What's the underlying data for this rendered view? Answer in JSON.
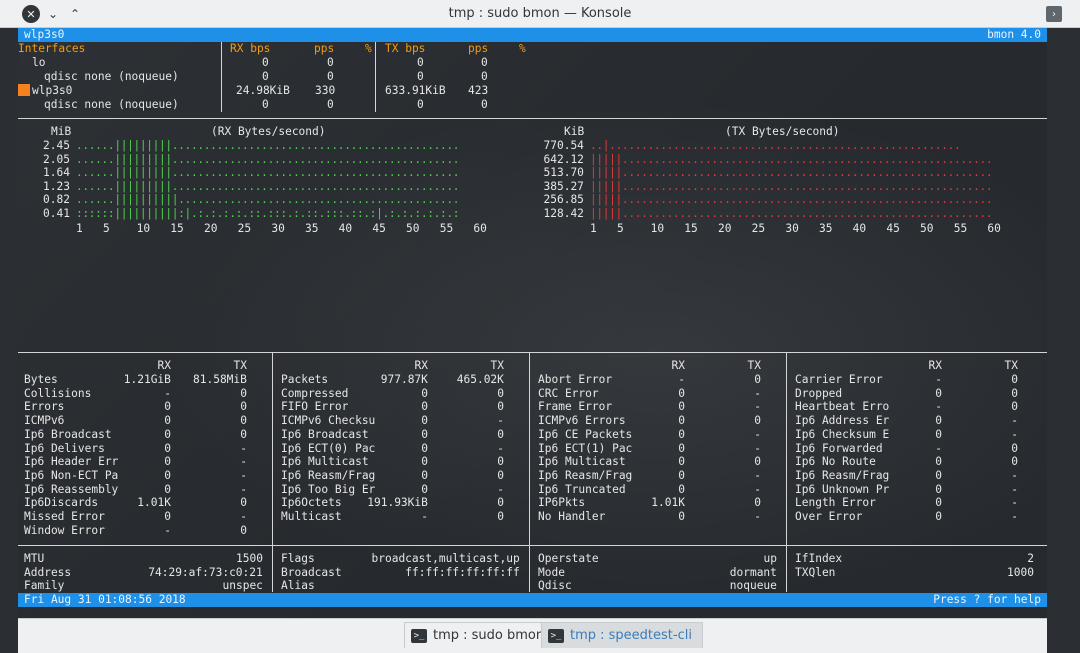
{
  "window": {
    "title": "tmp : sudo bmon — Konsole",
    "close_glyph": "✕",
    "min_glyph": "⌄",
    "max_glyph": "⌃",
    "menu_glyph": "›"
  },
  "bmon": {
    "top_bar": {
      "left": "wlp3s0",
      "right": "bmon 4.0"
    },
    "iface_header": {
      "interfaces": "Interfaces",
      "rx_bps": "RX bps",
      "rx_pps": "pps",
      "rx_pct": "%",
      "tx_bps": "TX bps",
      "tx_pps": "pps",
      "tx_pct": "%"
    },
    "interfaces": [
      {
        "name": "lo",
        "rx_bps": "0",
        "rx_pps": "0",
        "tx_bps": "0",
        "tx_pps": "0",
        "selected": false,
        "indent": 1
      },
      {
        "name": "qdisc none (noqueue)",
        "rx_bps": "0",
        "rx_pps": "0",
        "tx_bps": "0",
        "tx_pps": "0",
        "selected": false,
        "indent": 2
      },
      {
        "name": "wlp3s0",
        "rx_bps": "24.98KiB",
        "rx_pps": "330",
        "tx_bps": "633.91KiB",
        "tx_pps": "423",
        "selected": true,
        "indent": 1
      },
      {
        "name": "qdisc none (noqueue)",
        "rx_bps": "0",
        "rx_pps": "0",
        "tx_bps": "0",
        "tx_pps": "0",
        "selected": false,
        "indent": 2
      }
    ],
    "rx_graph": {
      "unit": "MiB",
      "title": "(RX Bytes/second)",
      "rows": [
        {
          "label": "2.45",
          "plot": "......|||||||||............................................."
        },
        {
          "label": "2.05",
          "plot": "......|||||||||............................................."
        },
        {
          "label": "1.64",
          "plot": "......|||||||||............................................."
        },
        {
          "label": "1.23",
          "plot": "......|||||||||............................................."
        },
        {
          "label": "0.82",
          "plot": "......||||||||||............................................"
        },
        {
          "label": "0.41",
          "plot": "::::::||||||||||:|.:.:.:.:.::.:::.:.::.:::.::.:|.:.:.:.:.:.:"
        }
      ],
      "x_axis": "1   5    10   15   20   25   30   35   40   45   50   55   60"
    },
    "tx_graph": {
      "unit": "KiB",
      "title": "(TX Bytes/second)",
      "rows": [
        {
          "label": "770.54",
          "plot": "..|......................................................."
        },
        {
          "label": "642.12",
          "plot": "|||||.........................................................."
        },
        {
          "label": "513.70",
          "plot": "|||||.........................................................."
        },
        {
          "label": "385.27",
          "plot": "|||||.........................................................."
        },
        {
          "label": "256.85",
          "plot": "|||||.........................................................."
        },
        {
          "label": "128.42",
          "plot": "|||||.........................................................."
        }
      ],
      "x_axis": "1   5    10   15   20   25   30   35   40   45   50   55   60"
    },
    "stats": {
      "col1": {
        "rx": "RX",
        "tx": "TX",
        "rows": [
          [
            "Bytes",
            "1.21GiB",
            "81.58MiB"
          ],
          [
            "Collisions",
            "-",
            "0"
          ],
          [
            "Errors",
            "0",
            "0"
          ],
          [
            "ICMPv6",
            "0",
            "0"
          ],
          [
            "Ip6 Broadcast",
            "0",
            "0"
          ],
          [
            "Ip6 Delivers",
            "0",
            "-"
          ],
          [
            "Ip6 Header Err",
            "0",
            "-"
          ],
          [
            "Ip6 Non-ECT Pa",
            "0",
            "-"
          ],
          [
            "Ip6 Reassembly",
            "0",
            "-"
          ],
          [
            "Ip6Discards",
            "1.01K",
            "0"
          ],
          [
            "Missed Error",
            "0",
            "-"
          ],
          [
            "Window Error",
            "-",
            "0"
          ]
        ]
      },
      "col2": {
        "rx": "RX",
        "tx": "TX",
        "rows": [
          [
            "Packets",
            "977.87K",
            "465.02K"
          ],
          [
            "Compressed",
            "0",
            "0"
          ],
          [
            "FIFO Error",
            "0",
            "0"
          ],
          [
            "ICMPv6 Checksu",
            "0",
            "-"
          ],
          [
            "Ip6 Broadcast",
            "0",
            "0"
          ],
          [
            "Ip6 ECT(0) Pac",
            "0",
            "-"
          ],
          [
            "Ip6 Multicast",
            "0",
            "0"
          ],
          [
            "Ip6 Reasm/Frag",
            "0",
            "0"
          ],
          [
            "Ip6 Too Big Er",
            "0",
            "-"
          ],
          [
            "Ip6Octets",
            "191.93KiB",
            "0"
          ],
          [
            "Multicast",
            "-",
            "0"
          ]
        ]
      },
      "col3": {
        "rx": "RX",
        "tx": "TX",
        "rows": [
          [
            "Abort Error",
            "-",
            "0"
          ],
          [
            "CRC Error",
            "0",
            "-"
          ],
          [
            "Frame Error",
            "0",
            "-"
          ],
          [
            "ICMPv6 Errors",
            "0",
            "0"
          ],
          [
            "Ip6 CE Packets",
            "0",
            "-"
          ],
          [
            "Ip6 ECT(1) Pac",
            "0",
            "-"
          ],
          [
            "Ip6 Multicast",
            "0",
            "0"
          ],
          [
            "Ip6 Reasm/Frag",
            "0",
            "-"
          ],
          [
            "Ip6 Truncated",
            "0",
            "-"
          ],
          [
            "IP6Pkts",
            "1.01K",
            "0"
          ],
          [
            "No Handler",
            "0",
            "-"
          ]
        ]
      },
      "col4": {
        "rx": "RX",
        "tx": "TX",
        "rows": [
          [
            "Carrier Error",
            "-",
            "0"
          ],
          [
            "Dropped",
            "0",
            "0"
          ],
          [
            "Heartbeat Erro",
            "-",
            "0"
          ],
          [
            "Ip6 Address Er",
            "0",
            "-"
          ],
          [
            "Ip6 Checksum E",
            "0",
            "-"
          ],
          [
            "Ip6 Forwarded",
            "-",
            "0"
          ],
          [
            "Ip6 No Route",
            "0",
            "0"
          ],
          [
            "Ip6 Reasm/Frag",
            "0",
            "-"
          ],
          [
            "Ip6 Unknown Pr",
            "0",
            "-"
          ],
          [
            "Length Error",
            "0",
            "-"
          ],
          [
            "Over Error",
            "0",
            "-"
          ]
        ]
      }
    },
    "info": {
      "col1": [
        [
          "MTU",
          "1500"
        ],
        [
          "Address",
          "74:29:af:73:c0:21"
        ],
        [
          "Family",
          "unspec"
        ]
      ],
      "col2": [
        [
          "Flags",
          "broadcast,multicast,up"
        ],
        [
          "Broadcast",
          "ff:ff:ff:ff:ff:ff"
        ],
        [
          "Alias",
          ""
        ]
      ],
      "col3": [
        [
          "Operstate",
          "up"
        ],
        [
          "Mode",
          "dormant"
        ],
        [
          "Qdisc",
          "noqueue"
        ]
      ],
      "col4": [
        [
          "IfIndex",
          "2"
        ],
        [
          "TXQlen",
          "1000"
        ]
      ]
    },
    "bottom_bar": {
      "left": "Fri Aug 31 01:08:56 2018",
      "right": "Press ? for help"
    }
  },
  "taskbar": {
    "tabs": [
      {
        "label": "tmp : sudo bmon",
        "active": true,
        "icon": ">_"
      },
      {
        "label": "tmp : speedtest-cli",
        "active": false,
        "icon": ">_"
      }
    ]
  },
  "colors": {
    "accent_bar": "#1e90e8",
    "header_orange": "#f39c12",
    "rx_green": "#4fd14f",
    "tx_red": "#e03b3b",
    "selection_marker": "#f5811f"
  }
}
